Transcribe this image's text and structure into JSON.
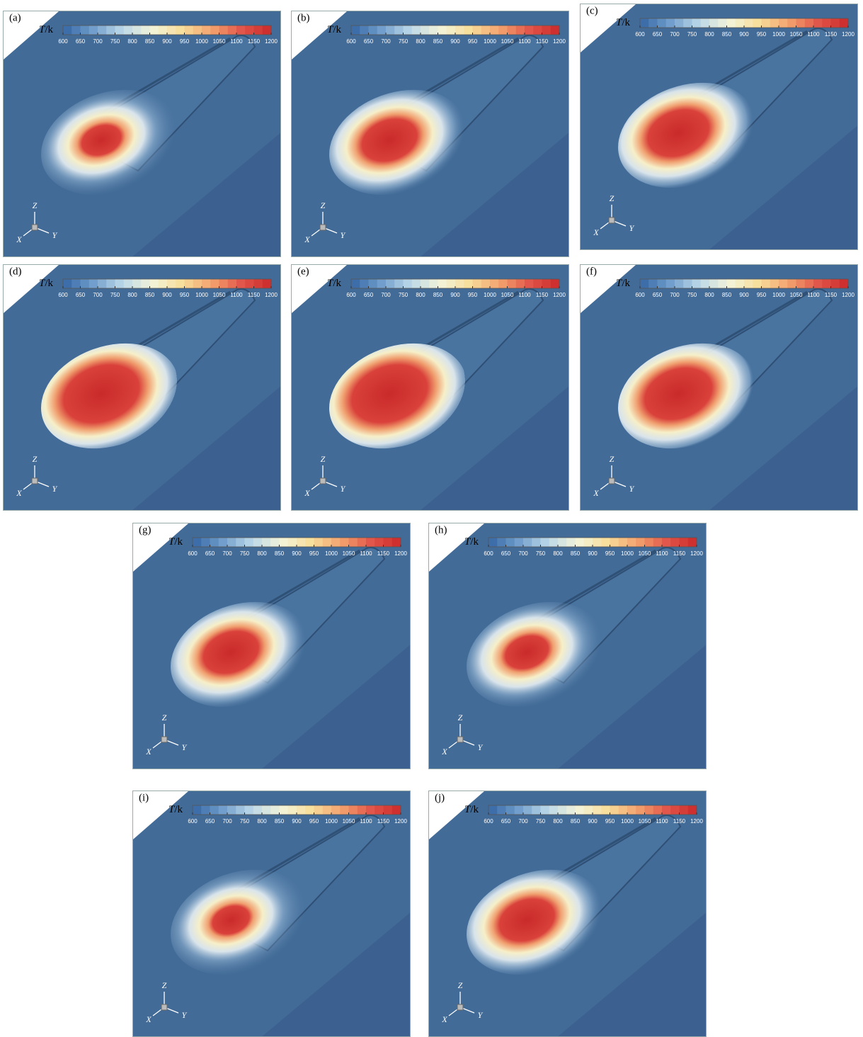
{
  "panels": [
    {
      "label": "(a)"
    },
    {
      "label": "(b)"
    },
    {
      "label": "(c)"
    },
    {
      "label": "(d)"
    },
    {
      "label": "(e)"
    },
    {
      "label": "(f)"
    },
    {
      "label": "(g)"
    },
    {
      "label": "(h)"
    },
    {
      "label": "(i)"
    },
    {
      "label": "(j)"
    }
  ],
  "colorbar": {
    "symbol": "T",
    "unit": "/k",
    "ticks": [
      600,
      650,
      700,
      750,
      800,
      850,
      900,
      950,
      1000,
      1050,
      1100,
      1150,
      1200
    ],
    "range": [
      600,
      1200
    ],
    "band_step": 25,
    "colors": [
      "#3566a4",
      "#6f9dcb",
      "#bcd8e8",
      "#f3f3d8",
      "#f7de9a",
      "#f3a26e",
      "#e2554a",
      "#c92a2a"
    ]
  },
  "axes": {
    "z": "Z",
    "x": "X",
    "y": "Y"
  }
}
